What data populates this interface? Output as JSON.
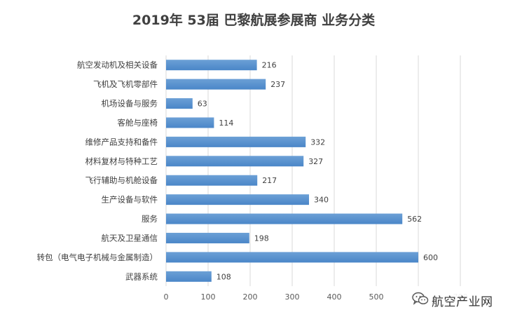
{
  "colors": {
    "bar": "#4A86C8",
    "bar_top": "#6CA0D6",
    "grid": "#D9D9D9",
    "text": "#404040"
  },
  "chart_data": {
    "type": "bar",
    "orientation": "horizontal",
    "title": "2019年 53届 巴黎航展参展商 业务分类",
    "categories": [
      "航空发动机及相关设备",
      "飞机及飞机零部件",
      "机场设备与服务",
      "客舱与座椅",
      "维修产品支持和备件",
      "材料复材与特种工艺",
      "飞行辅助与机舱设备",
      "生产设备与软件",
      "服务",
      "航天及卫星通信",
      "转包（电气电子机械与金属制造）",
      "武器系统"
    ],
    "values": [
      216,
      237,
      63,
      114,
      332,
      327,
      217,
      340,
      562,
      198,
      600,
      108
    ],
    "xlim": [
      0,
      700
    ],
    "xticks": [
      0,
      100,
      200,
      300,
      400,
      500,
      600,
      700
    ],
    "grid": true,
    "data_labels": true,
    "legend": "none"
  },
  "watermark": {
    "icon": "wechat-icon",
    "text": "航空产业网"
  }
}
